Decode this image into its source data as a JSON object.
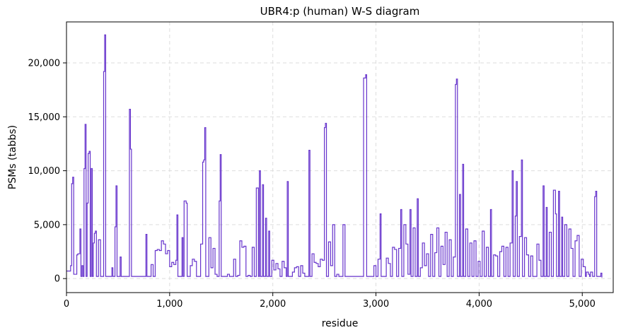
{
  "chart_data": {
    "type": "line",
    "title": "UBR4:p (human) W-S diagram",
    "xlabel": "residue",
    "ylabel": "PSMs (tabbs)",
    "xlim": [
      0,
      5300
    ],
    "ylim": [
      -1300,
      23800
    ],
    "x_ticks": [
      0,
      1000,
      2000,
      3000,
      4000,
      5000
    ],
    "x_tick_labels": [
      "0",
      "1,000",
      "2,000",
      "3,000",
      "4,000",
      "5,000"
    ],
    "y_ticks": [
      0,
      5000,
      10000,
      15000,
      20000
    ],
    "y_tick_labels": [
      "0",
      "5,000",
      "10,000",
      "15,000",
      "20,000"
    ],
    "grid": true,
    "line_color": "#6633cc",
    "grid_color": "#dddddd",
    "series": [
      {
        "values": [
          [
            0,
            700
          ],
          [
            30,
            700
          ],
          [
            40,
            1200
          ],
          [
            50,
            8800
          ],
          [
            60,
            9400
          ],
          [
            70,
            400
          ],
          [
            90,
            400
          ],
          [
            100,
            2200
          ],
          [
            110,
            2300
          ],
          [
            120,
            2300
          ],
          [
            130,
            4600
          ],
          [
            140,
            200
          ],
          [
            150,
            1200
          ],
          [
            160,
            200
          ],
          [
            170,
            10200
          ],
          [
            180,
            14300
          ],
          [
            190,
            200
          ],
          [
            200,
            7000
          ],
          [
            210,
            11600
          ],
          [
            220,
            11800
          ],
          [
            230,
            200
          ],
          [
            240,
            10200
          ],
          [
            250,
            200
          ],
          [
            260,
            3300
          ],
          [
            270,
            4200
          ],
          [
            280,
            4400
          ],
          [
            290,
            200
          ],
          [
            310,
            3600
          ],
          [
            330,
            200
          ],
          [
            340,
            200
          ],
          [
            360,
            19200
          ],
          [
            370,
            22600
          ],
          [
            380,
            200
          ],
          [
            400,
            200
          ],
          [
            420,
            200
          ],
          [
            440,
            1000
          ],
          [
            450,
            200
          ],
          [
            470,
            4800
          ],
          [
            480,
            8600
          ],
          [
            490,
            200
          ],
          [
            520,
            2000
          ],
          [
            530,
            200
          ],
          [
            560,
            200
          ],
          [
            580,
            200
          ],
          [
            600,
            200
          ],
          [
            610,
            15700
          ],
          [
            620,
            12000
          ],
          [
            630,
            200
          ],
          [
            650,
            200
          ],
          [
            700,
            200
          ],
          [
            740,
            200
          ],
          [
            760,
            200
          ],
          [
            770,
            4100
          ],
          [
            780,
            200
          ],
          [
            800,
            200
          ],
          [
            820,
            1300
          ],
          [
            840,
            200
          ],
          [
            860,
            2600
          ],
          [
            880,
            2700
          ],
          [
            900,
            2600
          ],
          [
            920,
            3500
          ],
          [
            940,
            3200
          ],
          [
            960,
            2300
          ],
          [
            980,
            2600
          ],
          [
            1000,
            1100
          ],
          [
            1020,
            1500
          ],
          [
            1040,
            1300
          ],
          [
            1060,
            1700
          ],
          [
            1070,
            5900
          ],
          [
            1080,
            200
          ],
          [
            1100,
            200
          ],
          [
            1120,
            3800
          ],
          [
            1130,
            200
          ],
          [
            1140,
            7200
          ],
          [
            1160,
            7000
          ],
          [
            1170,
            200
          ],
          [
            1190,
            200
          ],
          [
            1200,
            1200
          ],
          [
            1220,
            1800
          ],
          [
            1240,
            1600
          ],
          [
            1260,
            200
          ],
          [
            1280,
            200
          ],
          [
            1300,
            3200
          ],
          [
            1320,
            10800
          ],
          [
            1330,
            11000
          ],
          [
            1340,
            14000
          ],
          [
            1350,
            200
          ],
          [
            1380,
            3800
          ],
          [
            1400,
            1000
          ],
          [
            1420,
            2800
          ],
          [
            1440,
            400
          ],
          [
            1460,
            200
          ],
          [
            1480,
            7200
          ],
          [
            1490,
            11500
          ],
          [
            1500,
            200
          ],
          [
            1520,
            200
          ],
          [
            1540,
            200
          ],
          [
            1560,
            400
          ],
          [
            1580,
            200
          ],
          [
            1600,
            200
          ],
          [
            1620,
            1800
          ],
          [
            1640,
            200
          ],
          [
            1660,
            300
          ],
          [
            1680,
            3500
          ],
          [
            1700,
            2900
          ],
          [
            1720,
            3000
          ],
          [
            1740,
            200
          ],
          [
            1760,
            300
          ],
          [
            1780,
            200
          ],
          [
            1800,
            2900
          ],
          [
            1820,
            200
          ],
          [
            1840,
            8400
          ],
          [
            1860,
            200
          ],
          [
            1870,
            10000
          ],
          [
            1880,
            200
          ],
          [
            1900,
            8700
          ],
          [
            1910,
            200
          ],
          [
            1930,
            5600
          ],
          [
            1940,
            200
          ],
          [
            1960,
            4400
          ],
          [
            1970,
            200
          ],
          [
            1990,
            1700
          ],
          [
            2010,
            800
          ],
          [
            2030,
            1400
          ],
          [
            2050,
            900
          ],
          [
            2070,
            200
          ],
          [
            2090,
            1600
          ],
          [
            2110,
            1000
          ],
          [
            2130,
            200
          ],
          [
            2140,
            9000
          ],
          [
            2150,
            200
          ],
          [
            2170,
            200
          ],
          [
            2190,
            600
          ],
          [
            2210,
            1000
          ],
          [
            2230,
            1100
          ],
          [
            2250,
            200
          ],
          [
            2270,
            1200
          ],
          [
            2290,
            500
          ],
          [
            2310,
            200
          ],
          [
            2330,
            200
          ],
          [
            2350,
            11900
          ],
          [
            2360,
            200
          ],
          [
            2380,
            2300
          ],
          [
            2400,
            1500
          ],
          [
            2420,
            1400
          ],
          [
            2440,
            1100
          ],
          [
            2460,
            1800
          ],
          [
            2480,
            1700
          ],
          [
            2500,
            14000
          ],
          [
            2510,
            14400
          ],
          [
            2520,
            200
          ],
          [
            2540,
            3400
          ],
          [
            2560,
            1200
          ],
          [
            2580,
            5000
          ],
          [
            2600,
            200
          ],
          [
            2620,
            400
          ],
          [
            2640,
            200
          ],
          [
            2660,
            200
          ],
          [
            2680,
            5000
          ],
          [
            2700,
            200
          ],
          [
            2720,
            200
          ],
          [
            2760,
            200
          ],
          [
            2800,
            200
          ],
          [
            2840,
            200
          ],
          [
            2880,
            18600
          ],
          [
            2900,
            18900
          ],
          [
            2910,
            200
          ],
          [
            2940,
            200
          ],
          [
            2980,
            1200
          ],
          [
            3000,
            200
          ],
          [
            3020,
            1800
          ],
          [
            3040,
            6000
          ],
          [
            3050,
            200
          ],
          [
            3080,
            200
          ],
          [
            3100,
            1900
          ],
          [
            3120,
            1400
          ],
          [
            3140,
            200
          ],
          [
            3160,
            2900
          ],
          [
            3180,
            2700
          ],
          [
            3200,
            200
          ],
          [
            3220,
            2800
          ],
          [
            3240,
            6400
          ],
          [
            3250,
            200
          ],
          [
            3270,
            5000
          ],
          [
            3290,
            3200
          ],
          [
            3310,
            400
          ],
          [
            3330,
            6400
          ],
          [
            3340,
            200
          ],
          [
            3360,
            4700
          ],
          [
            3380,
            200
          ],
          [
            3400,
            7400
          ],
          [
            3410,
            200
          ],
          [
            3430,
            1000
          ],
          [
            3450,
            3300
          ],
          [
            3470,
            1200
          ],
          [
            3490,
            2300
          ],
          [
            3510,
            200
          ],
          [
            3530,
            4100
          ],
          [
            3550,
            200
          ],
          [
            3570,
            2400
          ],
          [
            3590,
            4700
          ],
          [
            3610,
            200
          ],
          [
            3630,
            3000
          ],
          [
            3650,
            1300
          ],
          [
            3670,
            4300
          ],
          [
            3690,
            200
          ],
          [
            3710,
            3600
          ],
          [
            3730,
            200
          ],
          [
            3750,
            2000
          ],
          [
            3770,
            18000
          ],
          [
            3780,
            18500
          ],
          [
            3790,
            200
          ],
          [
            3810,
            7800
          ],
          [
            3820,
            200
          ],
          [
            3840,
            10600
          ],
          [
            3850,
            200
          ],
          [
            3870,
            4600
          ],
          [
            3890,
            200
          ],
          [
            3910,
            3300
          ],
          [
            3930,
            200
          ],
          [
            3950,
            3500
          ],
          [
            3970,
            200
          ],
          [
            3990,
            1600
          ],
          [
            4010,
            200
          ],
          [
            4030,
            4400
          ],
          [
            4050,
            200
          ],
          [
            4070,
            2900
          ],
          [
            4090,
            200
          ],
          [
            4110,
            6400
          ],
          [
            4120,
            200
          ],
          [
            4140,
            2200
          ],
          [
            4160,
            2100
          ],
          [
            4180,
            200
          ],
          [
            4200,
            2500
          ],
          [
            4220,
            3000
          ],
          [
            4240,
            200
          ],
          [
            4260,
            2900
          ],
          [
            4280,
            200
          ],
          [
            4300,
            3300
          ],
          [
            4320,
            10000
          ],
          [
            4330,
            200
          ],
          [
            4350,
            5800
          ],
          [
            4360,
            9000
          ],
          [
            4370,
            200
          ],
          [
            4390,
            3900
          ],
          [
            4410,
            11000
          ],
          [
            4420,
            200
          ],
          [
            4440,
            3800
          ],
          [
            4460,
            2200
          ],
          [
            4480,
            200
          ],
          [
            4500,
            2100
          ],
          [
            4520,
            200
          ],
          [
            4540,
            200
          ],
          [
            4560,
            3200
          ],
          [
            4580,
            1700
          ],
          [
            4600,
            200
          ],
          [
            4620,
            8600
          ],
          [
            4630,
            200
          ],
          [
            4650,
            6600
          ],
          [
            4660,
            200
          ],
          [
            4680,
            4300
          ],
          [
            4700,
            200
          ],
          [
            4720,
            8200
          ],
          [
            4740,
            6000
          ],
          [
            4750,
            200
          ],
          [
            4770,
            8100
          ],
          [
            4780,
            200
          ],
          [
            4800,
            5700
          ],
          [
            4810,
            200
          ],
          [
            4830,
            5000
          ],
          [
            4850,
            200
          ],
          [
            4870,
            4600
          ],
          [
            4890,
            2800
          ],
          [
            4910,
            200
          ],
          [
            4930,
            3500
          ],
          [
            4950,
            4000
          ],
          [
            4970,
            200
          ],
          [
            4990,
            1800
          ],
          [
            5010,
            1100
          ],
          [
            5030,
            200
          ],
          [
            5040,
            600
          ],
          [
            5060,
            400
          ],
          [
            5070,
            200
          ],
          [
            5080,
            600
          ],
          [
            5100,
            200
          ],
          [
            5120,
            7600
          ],
          [
            5130,
            8100
          ],
          [
            5140,
            200
          ],
          [
            5160,
            200
          ],
          [
            5180,
            500
          ],
          [
            5190,
            100
          ]
        ]
      }
    ]
  }
}
